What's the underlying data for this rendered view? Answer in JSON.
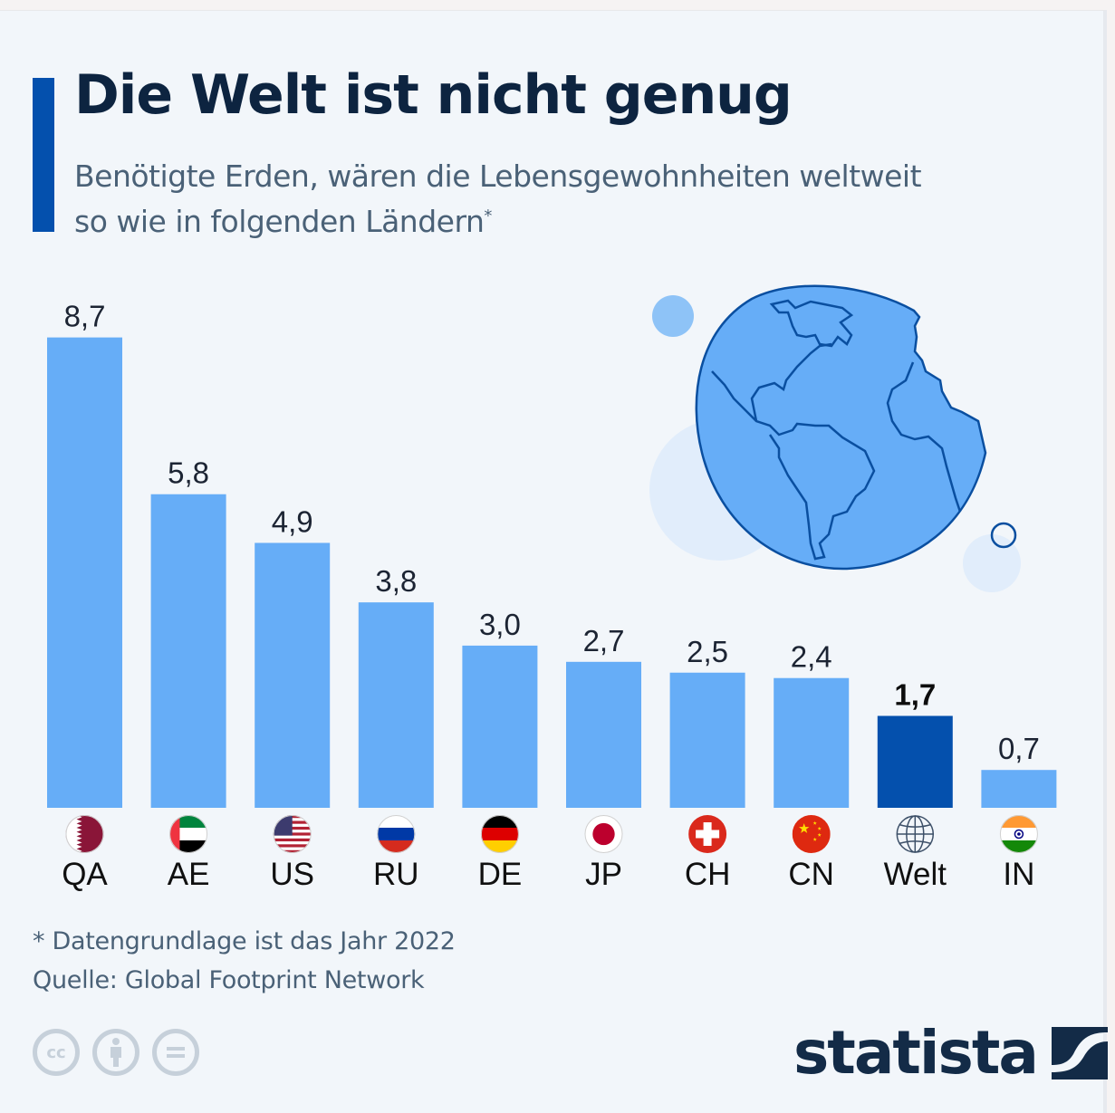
{
  "header": {
    "title": "Die Welt ist nicht genug",
    "subtitle": "Benötigte Erden, wären die Lebensgewohnheiten weltweit so wie in folgenden Ländern",
    "subtitle_marker": "*"
  },
  "chart_data": {
    "type": "bar",
    "title": "Die Welt ist nicht genug",
    "subtitle": "Benötigte Erden, wären die Lebensgewohnheiten weltweit so wie in folgenden Ländern*",
    "xlabel": "",
    "ylabel": "",
    "ylim": [
      0,
      9
    ],
    "grid": false,
    "categories": [
      "QA",
      "AE",
      "US",
      "RU",
      "DE",
      "JP",
      "CH",
      "CN",
      "Welt",
      "IN"
    ],
    "values": [
      8.7,
      5.8,
      4.9,
      3.8,
      3.0,
      2.7,
      2.5,
      2.4,
      1.7,
      0.7
    ],
    "value_labels": [
      "8,7",
      "5,8",
      "4,9",
      "3,8",
      "3,0",
      "2,7",
      "2,5",
      "2,4",
      "1,7",
      "0,7"
    ],
    "highlight": "Welt",
    "icons": [
      "flag-qatar",
      "flag-uae",
      "flag-usa",
      "flag-russia",
      "flag-germany",
      "flag-japan",
      "flag-switzerland",
      "flag-china",
      "globe-icon",
      "flag-india"
    ],
    "colors": {
      "bar": "#66adf7",
      "highlight": "#0450ad"
    }
  },
  "footer": {
    "note": "* Datengrundlage ist das Jahr 2022",
    "source": "Quelle: Global Footprint Network",
    "license_icons": [
      "cc",
      "by",
      "nd"
    ],
    "cc_label": "cc",
    "by_label": "i",
    "nd_label": "=",
    "brand": "statista"
  }
}
